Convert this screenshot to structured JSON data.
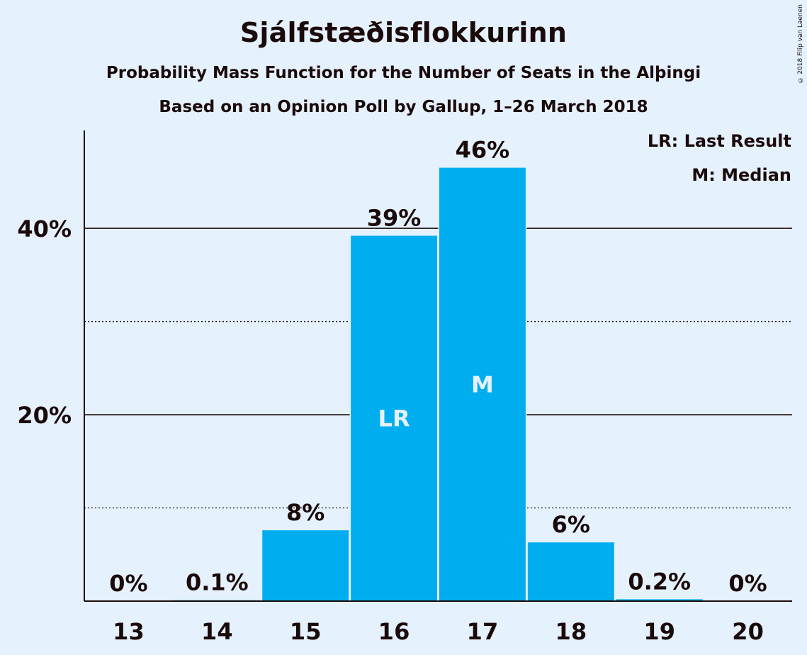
{
  "chart_data": {
    "type": "bar",
    "title": "Sjálfstæðisflokkurinn",
    "subtitle": "Probability Mass Function for the Number of Seats in the Alþingi",
    "subtitle2": "Based on an Opinion Poll by Gallup, 1–26 March 2018",
    "categories": [
      "13",
      "14",
      "15",
      "16",
      "17",
      "18",
      "19",
      "20"
    ],
    "values": [
      0,
      0.1,
      7.6,
      39.2,
      46.5,
      6.3,
      0.2,
      0
    ],
    "data_labels": [
      "0%",
      "0.1%",
      "8%",
      "39%",
      "46%",
      "6%",
      "0.2%",
      "0%"
    ],
    "bar_markers": [
      "",
      "",
      "",
      "LR",
      "M",
      "",
      "",
      ""
    ],
    "yticks": [
      20,
      40
    ],
    "ytick_labels": [
      "20%",
      "40%"
    ],
    "minor_gridlines": [
      10,
      30
    ],
    "ylim": [
      0,
      50.5
    ],
    "xlabel": "",
    "ylabel": "",
    "grid": true,
    "legend": {
      "placement": "top-right",
      "entries": [
        "LR: Last Result",
        "M: Median"
      ]
    },
    "bar_color": "#00aeef"
  },
  "copyright": "© 2018 Filip van Laenen"
}
